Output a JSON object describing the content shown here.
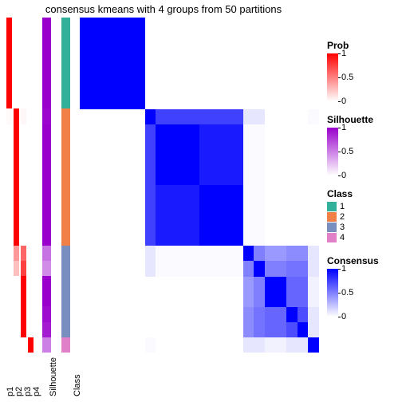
{
  "title": "consensus kmeans with 4 groups from 50 partitions",
  "n_samples": 22,
  "annotation_columns": {
    "p": {
      "count": 4,
      "labels": [
        "p1",
        "p2",
        "p3",
        "p4"
      ],
      "color_low": "#ffffff",
      "color_high": "#ff0000"
    },
    "silhouette": {
      "label": "Silhouette",
      "color_low": "#ffffff",
      "color_high": "#9900cc"
    },
    "class": {
      "label": "Class",
      "colors": {
        "1": "#33b09a",
        "2": "#f08048",
        "3": "#7a8fc0",
        "4": "#e080c8"
      }
    }
  },
  "samples": [
    {
      "p": [
        1,
        0,
        0,
        0
      ],
      "sil": 1,
      "cls": 1
    },
    {
      "p": [
        1,
        0,
        0,
        0
      ],
      "sil": 1,
      "cls": 1
    },
    {
      "p": [
        1,
        0,
        0,
        0
      ],
      "sil": 1,
      "cls": 1
    },
    {
      "p": [
        1,
        0,
        0,
        0
      ],
      "sil": 1,
      "cls": 1
    },
    {
      "p": [
        1,
        0,
        0,
        0
      ],
      "sil": 1,
      "cls": 1
    },
    {
      "p": [
        1,
        0,
        0,
        0
      ],
      "sil": 1,
      "cls": 1
    },
    {
      "p": [
        0.02,
        1,
        0.03,
        0
      ],
      "sil": 0.98,
      "cls": 2
    },
    {
      "p": [
        0,
        1,
        0,
        0
      ],
      "sil": 1,
      "cls": 2
    },
    {
      "p": [
        0,
        1,
        0,
        0
      ],
      "sil": 1,
      "cls": 2
    },
    {
      "p": [
        0,
        1,
        0,
        0
      ],
      "sil": 1,
      "cls": 2
    },
    {
      "p": [
        0,
        1,
        0,
        0
      ],
      "sil": 1,
      "cls": 2
    },
    {
      "p": [
        0,
        1,
        0,
        0
      ],
      "sil": 1,
      "cls": 2
    },
    {
      "p": [
        0,
        1,
        0,
        0
      ],
      "sil": 1,
      "cls": 2
    },
    {
      "p": [
        0,
        1,
        0,
        0
      ],
      "sil": 1,
      "cls": 2
    },
    {
      "p": [
        0,
        1,
        0,
        0
      ],
      "sil": 1,
      "cls": 2
    },
    {
      "p": [
        0,
        0.4,
        0.6,
        0
      ],
      "sil": 0.55,
      "cls": 3
    },
    {
      "p": [
        0,
        0.25,
        0.75,
        0
      ],
      "sil": 0.45,
      "cls": 3
    },
    {
      "p": [
        0,
        0,
        1,
        0
      ],
      "sil": 1,
      "cls": 3
    },
    {
      "p": [
        0,
        0,
        1,
        0
      ],
      "sil": 1,
      "cls": 3
    },
    {
      "p": [
        0,
        0,
        1,
        0
      ],
      "sil": 0.95,
      "cls": 3
    },
    {
      "p": [
        0,
        0,
        1,
        0
      ],
      "sil": 0.9,
      "cls": 3
    },
    {
      "p": [
        0,
        0,
        0,
        1
      ],
      "sil": 0.5,
      "cls": 4
    }
  ],
  "consensus": {
    "color_low": "#ffffff",
    "color_high": "#0000ff",
    "matrix": [
      [
        1,
        1,
        1,
        1,
        1,
        1,
        0,
        0,
        0,
        0,
        0,
        0,
        0,
        0,
        0,
        0,
        0,
        0,
        0,
        0,
        0,
        0
      ],
      [
        1,
        1,
        1,
        1,
        1,
        1,
        0,
        0,
        0,
        0,
        0,
        0,
        0,
        0,
        0,
        0,
        0,
        0,
        0,
        0,
        0,
        0
      ],
      [
        1,
        1,
        1,
        1,
        1,
        1,
        0,
        0,
        0,
        0,
        0,
        0,
        0,
        0,
        0,
        0,
        0,
        0,
        0,
        0,
        0,
        0
      ],
      [
        1,
        1,
        1,
        1,
        1,
        1,
        0,
        0,
        0,
        0,
        0,
        0,
        0,
        0,
        0,
        0,
        0,
        0,
        0,
        0,
        0,
        0
      ],
      [
        1,
        1,
        1,
        1,
        1,
        1,
        0,
        0,
        0,
        0,
        0,
        0,
        0,
        0,
        0,
        0,
        0,
        0,
        0,
        0,
        0,
        0
      ],
      [
        1,
        1,
        1,
        1,
        1,
        1,
        0,
        0,
        0,
        0,
        0,
        0,
        0,
        0,
        0,
        0,
        0,
        0,
        0,
        0,
        0,
        0
      ],
      [
        0,
        0,
        0,
        0,
        0,
        0,
        1,
        0.75,
        0.75,
        0.75,
        0.75,
        0.75,
        0.75,
        0.75,
        0.75,
        0.1,
        0.1,
        0,
        0,
        0,
        0,
        0.02
      ],
      [
        0,
        0,
        0,
        0,
        0,
        0,
        0.75,
        1,
        1,
        1,
        1,
        0.9,
        0.9,
        0.9,
        0.9,
        0.02,
        0.02,
        0,
        0,
        0,
        0,
        0
      ],
      [
        0,
        0,
        0,
        0,
        0,
        0,
        0.75,
        1,
        1,
        1,
        1,
        0.9,
        0.9,
        0.9,
        0.9,
        0.02,
        0.02,
        0,
        0,
        0,
        0,
        0
      ],
      [
        0,
        0,
        0,
        0,
        0,
        0,
        0.75,
        1,
        1,
        1,
        1,
        0.9,
        0.9,
        0.9,
        0.9,
        0.02,
        0.02,
        0,
        0,
        0,
        0,
        0
      ],
      [
        0,
        0,
        0,
        0,
        0,
        0,
        0.75,
        1,
        1,
        1,
        1,
        0.9,
        0.9,
        0.9,
        0.9,
        0.02,
        0.02,
        0,
        0,
        0,
        0,
        0
      ],
      [
        0,
        0,
        0,
        0,
        0,
        0,
        0.75,
        0.9,
        0.9,
        0.9,
        0.9,
        1,
        1,
        1,
        1,
        0.02,
        0.02,
        0,
        0,
        0,
        0,
        0
      ],
      [
        0,
        0,
        0,
        0,
        0,
        0,
        0.75,
        0.9,
        0.9,
        0.9,
        0.9,
        1,
        1,
        1,
        1,
        0.02,
        0.02,
        0,
        0,
        0,
        0,
        0
      ],
      [
        0,
        0,
        0,
        0,
        0,
        0,
        0.75,
        0.9,
        0.9,
        0.9,
        0.9,
        1,
        1,
        1,
        1,
        0.02,
        0.02,
        0,
        0,
        0,
        0,
        0
      ],
      [
        0,
        0,
        0,
        0,
        0,
        0,
        0.75,
        0.9,
        0.9,
        0.9,
        0.9,
        1,
        1,
        1,
        1,
        0.02,
        0.02,
        0,
        0,
        0,
        0,
        0
      ],
      [
        0,
        0,
        0,
        0,
        0,
        0,
        0.1,
        0.02,
        0.02,
        0.02,
        0.02,
        0.02,
        0.02,
        0.02,
        0.02,
        1,
        0.5,
        0.4,
        0.4,
        0.45,
        0.45,
        0.1
      ],
      [
        0,
        0,
        0,
        0,
        0,
        0,
        0.1,
        0.02,
        0.02,
        0.02,
        0.02,
        0.02,
        0.02,
        0.02,
        0.02,
        0.5,
        1,
        0.5,
        0.5,
        0.55,
        0.55,
        0.1
      ],
      [
        0,
        0,
        0,
        0,
        0,
        0,
        0,
        0,
        0,
        0,
        0,
        0,
        0,
        0,
        0,
        0.4,
        0.5,
        1,
        1,
        0.6,
        0.6,
        0.05
      ],
      [
        0,
        0,
        0,
        0,
        0,
        0,
        0,
        0,
        0,
        0,
        0,
        0,
        0,
        0,
        0,
        0.4,
        0.5,
        1,
        1,
        0.6,
        0.6,
        0.05
      ],
      [
        0,
        0,
        0,
        0,
        0,
        0,
        0,
        0,
        0,
        0,
        0,
        0,
        0,
        0,
        0,
        0.45,
        0.55,
        0.6,
        0.6,
        1,
        0.7,
        0.1
      ],
      [
        0,
        0,
        0,
        0,
        0,
        0,
        0,
        0,
        0,
        0,
        0,
        0,
        0,
        0,
        0,
        0.45,
        0.55,
        0.6,
        0.6,
        0.7,
        1,
        0.1
      ],
      [
        0,
        0,
        0,
        0,
        0,
        0,
        0.02,
        0,
        0,
        0,
        0,
        0,
        0,
        0,
        0,
        0.1,
        0.1,
        0.05,
        0.05,
        0.1,
        0.1,
        1
      ]
    ]
  },
  "legends": {
    "prob": {
      "title": "Prob",
      "low": "#ffffff",
      "high": "#ff0000",
      "ticks": [
        {
          "v": 1,
          "pos": 0
        },
        {
          "v": 0.5,
          "pos": 50
        },
        {
          "v": 0,
          "pos": 100
        }
      ]
    },
    "silhouette": {
      "title": "Silhouette",
      "low": "#ffffff",
      "high": "#9900cc",
      "ticks": [
        {
          "v": 1,
          "pos": 0
        },
        {
          "v": 0.5,
          "pos": 50
        },
        {
          "v": 0,
          "pos": 100
        }
      ]
    },
    "class": {
      "title": "Class",
      "items": [
        {
          "l": "1",
          "c": "#33b09a"
        },
        {
          "l": "2",
          "c": "#f08048"
        },
        {
          "l": "3",
          "c": "#7a8fc0"
        },
        {
          "l": "4",
          "c": "#e080c8"
        }
      ]
    },
    "consensus": {
      "title": "Consensus",
      "low": "#ffffff",
      "high": "#0000ff",
      "ticks": [
        {
          "v": 1,
          "pos": 0
        },
        {
          "v": 0.5,
          "pos": 50
        },
        {
          "v": 0,
          "pos": 100
        }
      ]
    }
  },
  "fontsize_title": 13,
  "fontsize_label": 11
}
